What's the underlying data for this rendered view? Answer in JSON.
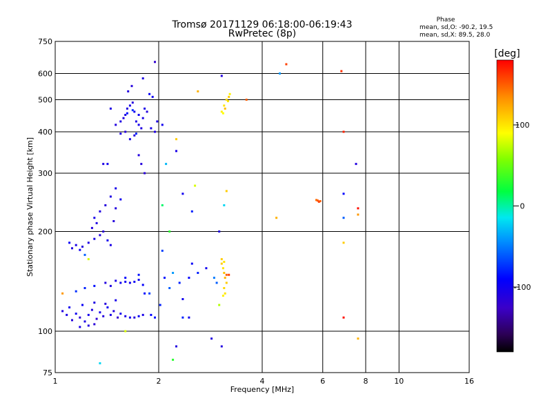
{
  "chart_data": {
    "type": "scatter",
    "title": "Tromsø 20171129 06:18:00-06:19:43",
    "subtitle": "RwPretec (8p)",
    "xlabel": "Frequency [MHz]",
    "ylabel": "Stationary phase Virtual Height [km]",
    "x_scale": "log2",
    "y_scale": "log",
    "xlim": [
      1,
      16
    ],
    "ylim": [
      75,
      750
    ],
    "x_ticks": [
      {
        "value": 1,
        "label": "1"
      },
      {
        "value": 2,
        "label": "2"
      },
      {
        "value": 4,
        "label": "4"
      },
      {
        "value": 6,
        "label": "6"
      },
      {
        "value": 8,
        "label": "8"
      },
      {
        "value": 10,
        "label": "10"
      },
      {
        "value": 16,
        "label": "16"
      }
    ],
    "y_ticks": [
      {
        "value": 75,
        "label": "75"
      },
      {
        "value": 100,
        "label": "100"
      },
      {
        "value": 200,
        "label": "200"
      },
      {
        "value": 300,
        "label": "300"
      },
      {
        "value": 400,
        "label": "400"
      },
      {
        "value": 500,
        "label": "500"
      },
      {
        "value": 600,
        "label": "600"
      },
      {
        "value": 750,
        "label": "750"
      }
    ],
    "grid": true,
    "stats": {
      "heading": "Phase",
      "line_o": "mean, sd,O: -90.2, 19.5",
      "line_x": "mean, sd,X:  89.5, 28.0"
    },
    "colorbar": {
      "label": "[deg]",
      "range": [
        -180,
        180
      ],
      "ticks": [
        {
          "value": 100,
          "label": "100"
        },
        {
          "value": 0,
          "label": "0"
        },
        {
          "value": -100,
          "label": "-100"
        }
      ]
    },
    "series": [
      {
        "points": [
          [
            1.05,
            115,
            -110
          ],
          [
            1.08,
            112,
            -105
          ],
          [
            1.12,
            108,
            -112
          ],
          [
            1.15,
            113,
            -100
          ],
          [
            1.18,
            110,
            -115
          ],
          [
            1.22,
            107,
            -108
          ],
          [
            1.25,
            112,
            -102
          ],
          [
            1.28,
            116,
            -110
          ],
          [
            1.32,
            109,
            -118
          ],
          [
            1.35,
            114,
            -104
          ],
          [
            1.38,
            111,
            -112
          ],
          [
            1.42,
            118,
            -98
          ],
          [
            1.45,
            112,
            -106
          ],
          [
            1.48,
            115,
            -110
          ],
          [
            1.52,
            110,
            -120
          ],
          [
            1.55,
            113,
            -102
          ],
          [
            1.6,
            111,
            -108
          ],
          [
            1.65,
            110,
            -100
          ],
          [
            1.7,
            110,
            -112
          ],
          [
            1.75,
            111,
            -95
          ],
          [
            1.8,
            112,
            -104
          ],
          [
            1.9,
            112,
            -90
          ],
          [
            1.95,
            110,
            -85
          ],
          [
            1.1,
            118,
            -100
          ],
          [
            1.2,
            120,
            -95
          ],
          [
            1.3,
            122,
            -108
          ],
          [
            1.4,
            121,
            -112
          ],
          [
            1.5,
            124,
            -104
          ],
          [
            1.25,
            104,
            -110
          ],
          [
            1.3,
            105,
            -115
          ],
          [
            1.18,
            103,
            -106
          ],
          [
            1.4,
            140,
            -110
          ],
          [
            1.5,
            142,
            -105
          ],
          [
            1.55,
            140,
            -100
          ],
          [
            1.6,
            141,
            -98
          ],
          [
            1.65,
            140,
            -102
          ],
          [
            1.7,
            141,
            -96
          ],
          [
            1.75,
            143,
            -100
          ],
          [
            1.8,
            138,
            -92
          ],
          [
            1.45,
            137,
            -108
          ],
          [
            1.3,
            137,
            -85
          ],
          [
            1.22,
            135,
            -80
          ],
          [
            1.15,
            132,
            -75
          ],
          [
            1.6,
            145,
            -90
          ],
          [
            1.75,
            148,
            -85
          ],
          [
            1.82,
            130,
            -88
          ],
          [
            1.88,
            130,
            -70
          ],
          [
            1.12,
            178,
            -110
          ],
          [
            1.15,
            182,
            -105
          ],
          [
            1.18,
            176,
            -100
          ],
          [
            1.2,
            180,
            -112
          ],
          [
            1.25,
            185,
            -108
          ],
          [
            1.3,
            190,
            -104
          ],
          [
            1.35,
            195,
            -110
          ],
          [
            1.38,
            200,
            -115
          ],
          [
            1.42,
            188,
            -100
          ],
          [
            1.45,
            182,
            -106
          ],
          [
            1.28,
            205,
            -112
          ],
          [
            1.32,
            212,
            -108
          ],
          [
            1.3,
            220,
            -104
          ],
          [
            1.35,
            230,
            -110
          ],
          [
            1.4,
            240,
            -112
          ],
          [
            1.45,
            255,
            -108
          ],
          [
            1.5,
            270,
            -104
          ],
          [
            1.5,
            235,
            -110
          ],
          [
            1.55,
            250,
            -100
          ],
          [
            1.48,
            215,
            -112
          ],
          [
            1.1,
            185,
            -95
          ],
          [
            1.22,
            170,
            -60
          ],
          [
            1.5,
            420,
            -110
          ],
          [
            1.55,
            430,
            -108
          ],
          [
            1.58,
            440,
            -112
          ],
          [
            1.6,
            450,
            -105
          ],
          [
            1.62,
            470,
            -110
          ],
          [
            1.65,
            480,
            -104
          ],
          [
            1.68,
            490,
            -112
          ],
          [
            1.7,
            460,
            -100
          ],
          [
            1.72,
            430,
            -108
          ],
          [
            1.75,
            420,
            -102
          ],
          [
            1.78,
            410,
            -110
          ],
          [
            1.6,
            400,
            -112
          ],
          [
            1.55,
            395,
            -108
          ],
          [
            1.65,
            380,
            -104
          ],
          [
            1.7,
            390,
            -110
          ],
          [
            1.75,
            450,
            -100
          ],
          [
            1.8,
            440,
            -106
          ],
          [
            1.85,
            460,
            -112
          ],
          [
            1.9,
            410,
            -104
          ],
          [
            1.95,
            400,
            -110
          ],
          [
            1.98,
            430,
            -108
          ],
          [
            1.92,
            510,
            -100
          ],
          [
            1.88,
            520,
            -95
          ],
          [
            1.82,
            470,
            -105
          ],
          [
            1.63,
            530,
            -110
          ],
          [
            1.67,
            550,
            -112
          ],
          [
            1.8,
            580,
            -108
          ],
          [
            1.95,
            650,
            -120
          ],
          [
            1.45,
            470,
            -108
          ],
          [
            1.75,
            340,
            -110
          ],
          [
            1.78,
            320,
            -112
          ],
          [
            1.82,
            300,
            -115
          ],
          [
            1.38,
            320,
            -108
          ],
          [
            1.42,
            320,
            -100
          ],
          [
            1.62,
            455,
            -85
          ],
          [
            1.68,
            465,
            -75
          ],
          [
            1.72,
            395,
            -80
          ],
          [
            2.05,
            175,
            -70
          ],
          [
            2.02,
            120,
            -80
          ],
          [
            2.08,
            145,
            -85
          ],
          [
            2.15,
            135,
            -60
          ],
          [
            2.2,
            150,
            -40
          ],
          [
            2.3,
            140,
            -80
          ],
          [
            2.35,
            125,
            -100
          ],
          [
            2.45,
            145,
            -90
          ],
          [
            2.5,
            160,
            -95
          ],
          [
            2.6,
            150,
            -80
          ],
          [
            2.75,
            155,
            -100
          ],
          [
            2.9,
            145,
            -50
          ],
          [
            2.95,
            140,
            -60
          ],
          [
            2.1,
            320,
            -30
          ],
          [
            2.25,
            350,
            -105
          ],
          [
            2.35,
            260,
            -100
          ],
          [
            2.45,
            110,
            -100
          ],
          [
            2.35,
            110,
            -80
          ],
          [
            2.25,
            90,
            -110
          ],
          [
            2.2,
            82,
            30
          ],
          [
            2.85,
            95,
            -110
          ],
          [
            3.05,
            90,
            -110
          ],
          [
            2.05,
            240,
            10
          ],
          [
            2.5,
            230,
            -80
          ],
          [
            2.25,
            380,
            110
          ],
          [
            3.05,
            590,
            -110
          ],
          [
            2.05,
            420,
            -100
          ],
          [
            2.15,
            200,
            30
          ],
          [
            2.55,
            275,
            80
          ],
          [
            3,
            200,
            -110
          ],
          [
            3,
            120,
            70
          ],
          [
            3.05,
            160,
            110
          ],
          [
            3.08,
            155,
            100
          ],
          [
            3.1,
            150,
            115
          ],
          [
            3.12,
            145,
            120
          ],
          [
            3.15,
            140,
            110
          ],
          [
            3.1,
            135,
            105
          ],
          [
            3.12,
            130,
            100
          ],
          [
            3.08,
            128,
            95
          ],
          [
            3.15,
            148,
            150
          ],
          [
            3.2,
            148,
            160
          ],
          [
            3.05,
            165,
            110
          ],
          [
            3.1,
            162,
            100
          ],
          [
            3.05,
            460,
            95
          ],
          [
            3.1,
            480,
            100
          ],
          [
            3.15,
            500,
            105
          ],
          [
            3.2,
            510,
            110
          ],
          [
            3.12,
            470,
            115
          ],
          [
            3.18,
            495,
            100
          ],
          [
            3.08,
            455,
            90
          ],
          [
            3.22,
            520,
            95
          ],
          [
            2.6,
            530,
            120
          ],
          [
            3.6,
            500,
            150
          ],
          [
            3.15,
            265,
            110
          ],
          [
            3.1,
            240,
            -20
          ],
          [
            4.4,
            220,
            120
          ],
          [
            4.7,
            640,
            160
          ],
          [
            4.5,
            600,
            -40
          ],
          [
            5.8,
            248,
            155
          ],
          [
            5.85,
            246,
            160
          ],
          [
            5.9,
            247,
            150
          ],
          [
            5.75,
            249,
            145
          ],
          [
            6.8,
            610,
            165
          ],
          [
            6.9,
            400,
            170
          ],
          [
            6.9,
            260,
            -90
          ],
          [
            6.9,
            220,
            -60
          ],
          [
            6.9,
            185,
            110
          ],
          [
            6.9,
            110,
            175
          ],
          [
            7.5,
            320,
            -110
          ],
          [
            7.6,
            235,
            175
          ],
          [
            7.6,
            225,
            130
          ],
          [
            7.6,
            95,
            120
          ],
          [
            1.6,
            100,
            80
          ],
          [
            1.35,
            80,
            -20
          ],
          [
            1.05,
            130,
            130
          ],
          [
            1.25,
            165,
            80
          ]
        ]
      }
    ]
  }
}
